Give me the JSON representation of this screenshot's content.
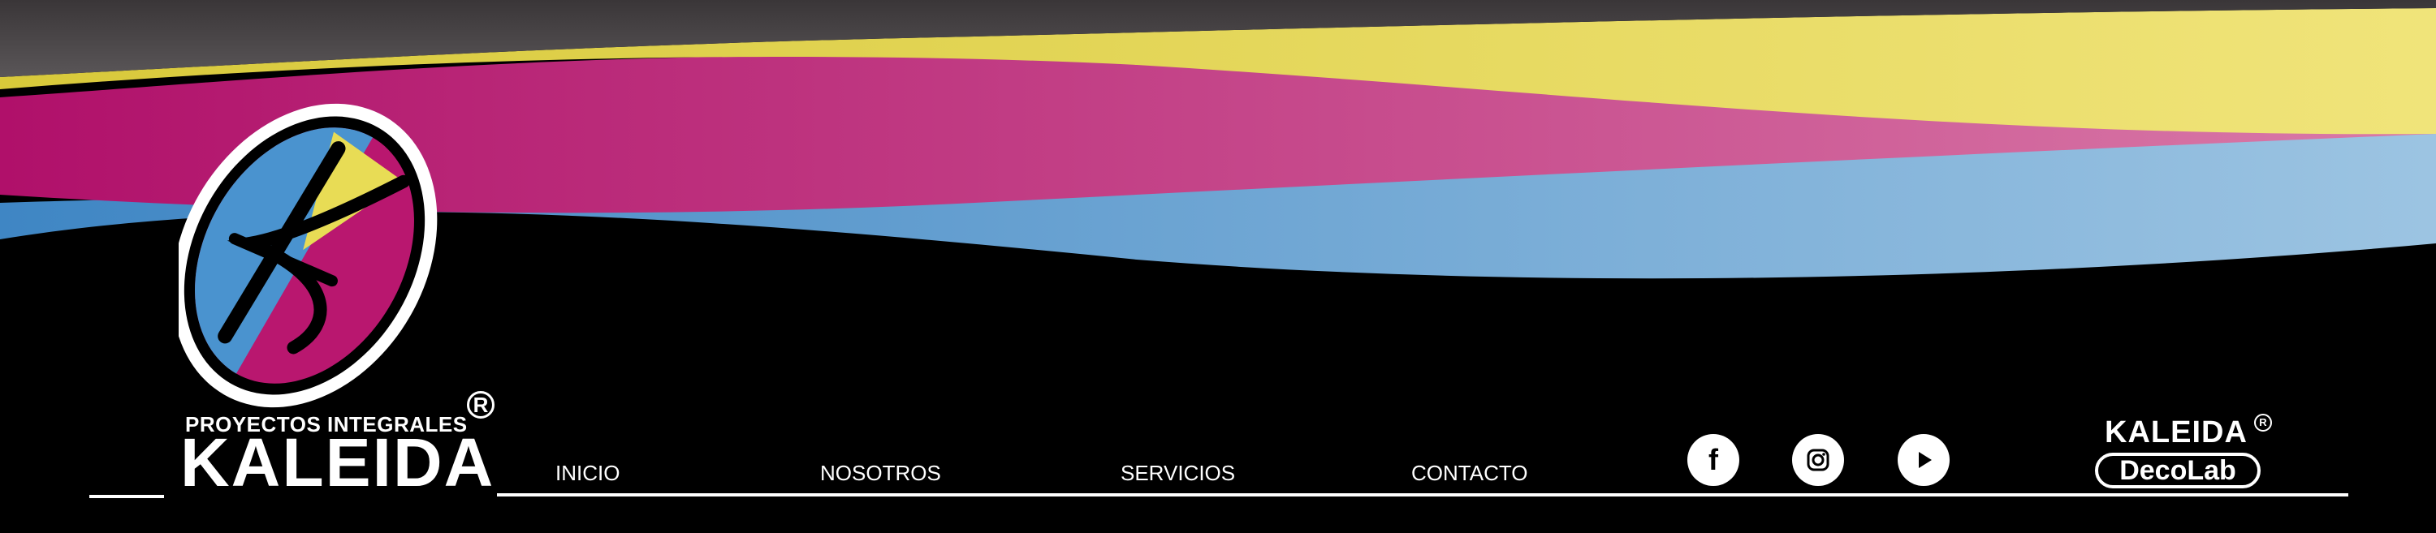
{
  "colors": {
    "background": "#000000",
    "gray": "#4a4648",
    "yellow": "#e8dc55",
    "magenta": "#b9176f",
    "blue": "#5b9bd0",
    "white": "#ffffff"
  },
  "brand": {
    "tagline": "PROYECTOS INTEGRALES",
    "name": "KALEIDA",
    "registered": "R"
  },
  "nav": {
    "items": [
      {
        "label": "INICIO"
      },
      {
        "label": "NOSOTROS"
      },
      {
        "label": "SERVICIOS"
      },
      {
        "label": "CONTACTO"
      }
    ]
  },
  "social": [
    {
      "icon": "facebook-icon",
      "glyph": "f"
    },
    {
      "icon": "instagram-icon"
    },
    {
      "icon": "youtube-icon"
    }
  ],
  "decolab": {
    "top": "KALEIDA",
    "registered": "R",
    "pill": "DecoLab"
  }
}
